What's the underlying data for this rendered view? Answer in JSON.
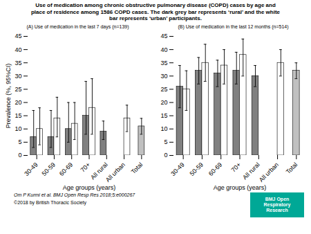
{
  "title": "Use of medication among chronic obstructive pulmonary disease (COPD) cases by age and\nplace of residence among 1586 COPD cases. The dark grey bar represents ‘rural’ and the white\nbar represents ‘urban’ participants.",
  "annotations": [
    {
      "text": "Om P Kurmi et al. BMJ Open Resp Res 2018;5:e000267"
    },
    {
      "text": "©2018 by British Thoracic Society"
    },
    {
      "text": "BMJ Open\nRespiratory\nResearch",
      "color": "#00A896"
    }
  ],
  "chart_data": [
    {
      "type": "bar",
      "title": "(A) Use of medication in the last 7 days (n=139)",
      "xlabel": "Age groups (years)",
      "ylabel": "Prevalence (%, 95%CI)",
      "categories": [
        "30-49",
        "50-59",
        "60-69",
        "70+",
        "All rural",
        "All urban",
        "Total"
      ],
      "ylim": [
        0,
        45
      ],
      "yticks": [
        0,
        5,
        10,
        15,
        20,
        25,
        30,
        35,
        40,
        45
      ],
      "series": [
        {
          "color": "#808080",
          "values": [
            7,
            7,
            10,
            15,
            9,
            null,
            null
          ],
          "yerr_low": [
            4,
            4,
            5,
            7,
            3,
            null,
            null
          ],
          "yerr_high": [
            10,
            10,
            10,
            13,
            4,
            null,
            null
          ]
        },
        {
          "color": "#ffffff",
          "values": [
            10,
            14,
            12,
            18,
            null,
            14,
            null
          ],
          "yerr_low": [
            6,
            7,
            6,
            10,
            null,
            5,
            null
          ],
          "yerr_high": [
            8,
            8,
            8,
            11,
            null,
            5,
            null
          ]
        },
        {
          "color": "#c0c0c0",
          "values": [
            null,
            null,
            null,
            null,
            null,
            null,
            11
          ],
          "yerr_low": [
            null,
            null,
            null,
            null,
            null,
            null,
            3
          ],
          "yerr_high": [
            null,
            null,
            null,
            null,
            null,
            null,
            3
          ]
        }
      ]
    },
    {
      "type": "bar",
      "title": "(B) Use of medication in the last 12 months (n=514)",
      "xlabel": "Age groups (years)",
      "categories": [
        "30-49",
        "50-59",
        "60-69",
        "70+",
        "All rural",
        "All urban",
        "Total"
      ],
      "ylim": [
        0,
        45
      ],
      "yticks": [
        0,
        5,
        10,
        15,
        20,
        25,
        30,
        35,
        40,
        45
      ],
      "series": [
        {
          "color": "#808080",
          "values": [
            26,
            32,
            31,
            32,
            30,
            null,
            null
          ],
          "yerr_low": [
            8,
            5,
            5,
            5,
            4,
            null,
            null
          ],
          "yerr_high": [
            8,
            5,
            5,
            7,
            4,
            null,
            null
          ]
        },
        {
          "color": "#ffffff",
          "values": [
            25,
            35,
            34,
            38,
            null,
            35,
            null
          ],
          "yerr_low": [
            8,
            7,
            7,
            8,
            null,
            5,
            null
          ],
          "yerr_high": [
            7,
            7,
            6,
            6,
            null,
            5,
            null
          ]
        },
        {
          "color": "#c0c0c0",
          "values": [
            null,
            null,
            null,
            null,
            null,
            null,
            32
          ],
          "yerr_low": [
            null,
            null,
            null,
            null,
            null,
            null,
            3
          ],
          "yerr_high": [
            null,
            null,
            null,
            null,
            null,
            null,
            3
          ]
        }
      ]
    }
  ]
}
